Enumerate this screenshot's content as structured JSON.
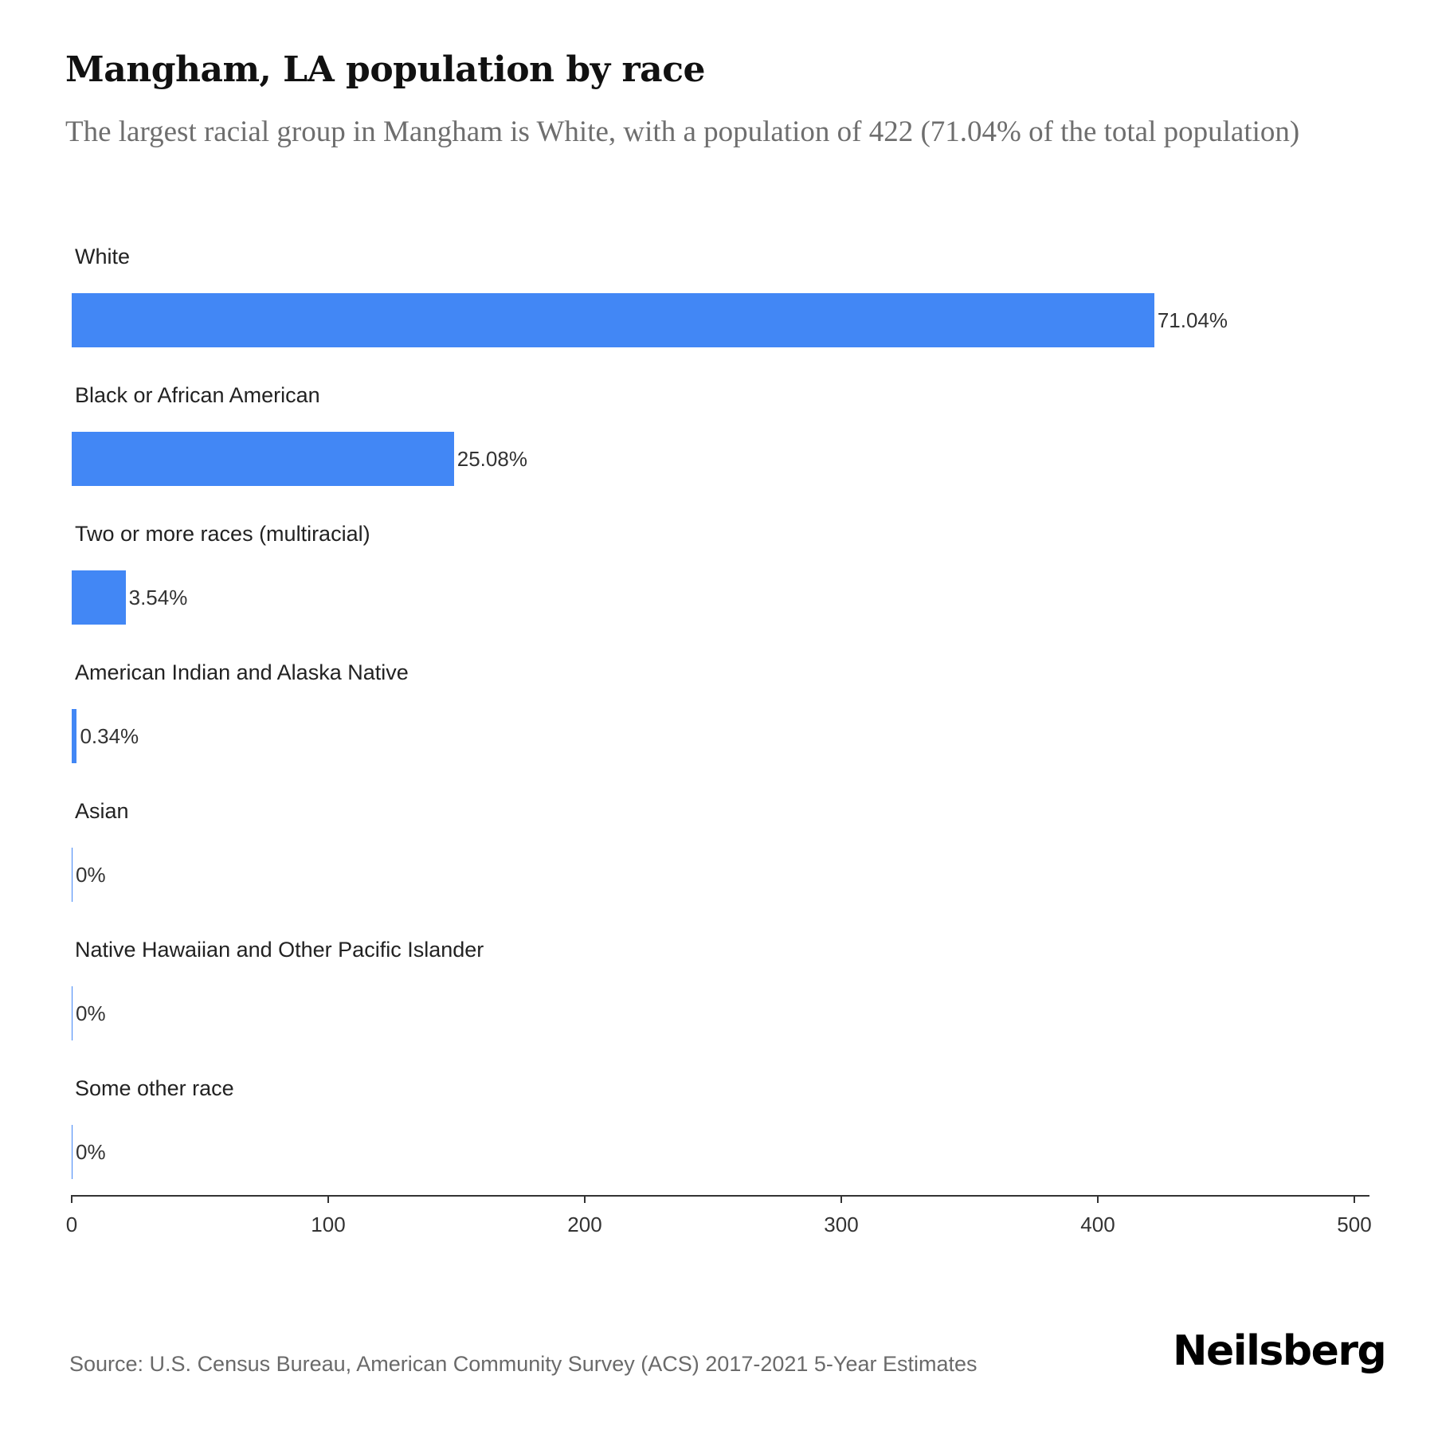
{
  "header": {
    "title": "Mangham, LA population by race",
    "subtitle": "The largest racial group in Mangham is White, with a population of 422 (71.04% of the total population)"
  },
  "footer": {
    "source": "Source: U.S. Census Bureau, American Community Survey (ACS) 2017-2021 5-Year Estimates",
    "logo": "Neilsberg"
  },
  "colors": {
    "bar": "#4287f5",
    "zero_bar": "#f1f1f1",
    "title": "#111111",
    "subtitle": "#6e6e6e"
  },
  "chart_data": {
    "type": "bar",
    "orientation": "horizontal",
    "title": "Mangham, LA population by race",
    "subtitle": "The largest racial group in Mangham is White, with a population of 422 (71.04% of the total population)",
    "categories": [
      "White",
      "Black or African American",
      "Two or more races (multiracial)",
      "American Indian and Alaska Native",
      "Asian",
      "Native Hawaiian and Other Pacific Islander",
      "Some other race"
    ],
    "values": [
      422,
      149,
      21,
      2,
      0,
      0,
      0
    ],
    "labels": [
      "71.04%",
      "25.08%",
      "3.54%",
      "0.34%",
      "0%",
      "0%",
      "0%"
    ],
    "percentages": [
      71.04,
      25.08,
      3.54,
      0.34,
      0,
      0,
      0
    ],
    "xlabel": "",
    "ylabel": "",
    "xlim": [
      0,
      500
    ],
    "xticks": [
      "0",
      "100",
      "200",
      "300",
      "400",
      "500"
    ],
    "grid": false,
    "legend": null,
    "source": "Source: U.S. Census Bureau, American Community Survey (ACS) 2017-2021 5-Year Estimates"
  }
}
